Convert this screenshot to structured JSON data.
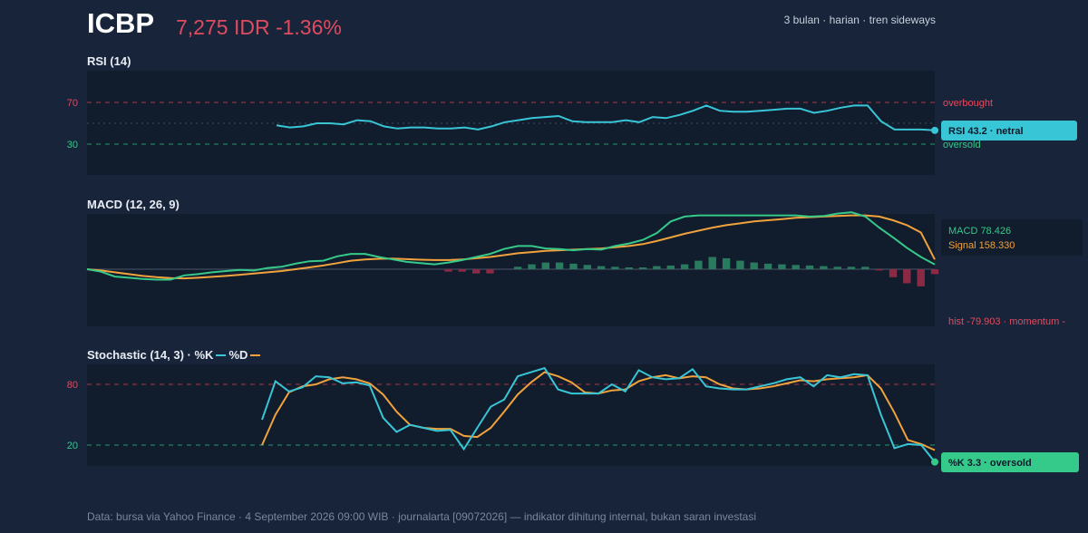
{
  "header": {
    "ticker": "ICBP",
    "price_change": "7,275 IDR -1.36%",
    "meta": "3 bulan · harian · tren sideways"
  },
  "colors": {
    "background": "#18243a",
    "panel": "#111c2d",
    "rsi_line": "#38c6d6",
    "macd_line": "#35c98a",
    "signal_line": "#f0a23c",
    "hist_positive": "#2a7a60",
    "hist_negative": "#8a2a44",
    "overbought": "#e04b60",
    "oversold": "#35c98a",
    "k_line": "#38c6d6",
    "d_line": "#f0a23c"
  },
  "rsi": {
    "title": "RSI (14)",
    "overbought_label": "overbought",
    "oversold_label": "oversold",
    "tick_70": "70",
    "tick_30": "30",
    "badge": "RSI 43.2 · netral"
  },
  "macd": {
    "title": "MACD (12, 26, 9)",
    "macd_label": "MACD 78.426",
    "signal_label": "Signal 158.330",
    "hist_label": "hist -79.903 · momentum -"
  },
  "stoch": {
    "title_prefix": "Stochastic (14, 3) · %K",
    "title_d": "%D",
    "tick_80": "80",
    "tick_20": "20",
    "badge": "%K 3.3 · oversold"
  },
  "footer": "Data: bursa via Yahoo Finance · 4 September 2026 09:00 WIB · journalarta [09072026] — indikator dihitung internal, bukan saran investasi",
  "chart_data": [
    {
      "type": "line",
      "title": "RSI (14)",
      "reference_lines": [
        70,
        30
      ],
      "reference_labels": [
        "overbought",
        "oversold"
      ],
      "series": [
        {
          "values": [
            48,
            46,
            47,
            50,
            50,
            49,
            53,
            52,
            47,
            45,
            46,
            46,
            45,
            45,
            46,
            44,
            47,
            51,
            53,
            55,
            56,
            57,
            52,
            51,
            51,
            51,
            53,
            51,
            56,
            55,
            58,
            62,
            67,
            62,
            61,
            61,
            62,
            63,
            64,
            64,
            60,
            62,
            65,
            67,
            67,
            52,
            44,
            44,
            44,
            43.2
          ]
        }
      ]
    },
    {
      "type": "line",
      "title": "MACD (12, 26, 9)",
      "series": [
        {
          "name": "MACD",
          "values": [
            0,
            -40,
            -120,
            -140,
            -160,
            -170,
            -170,
            -100,
            -80,
            -50,
            -30,
            -10,
            -20,
            20,
            40,
            90,
            130,
            140,
            210,
            250,
            250,
            200,
            160,
            120,
            100,
            80,
            110,
            150,
            200,
            250,
            330,
            380,
            380,
            340,
            330,
            310,
            330,
            320,
            380,
            420,
            480,
            590,
            780,
            860,
            880,
            880,
            880,
            880,
            880,
            880,
            880,
            880,
            860,
            870,
            910,
            930,
            860,
            680,
            520,
            350,
            200,
            78.426
          ]
        },
        {
          "name": "Signal",
          "values": [
            0,
            -20,
            -50,
            -80,
            -110,
            -130,
            -145,
            -150,
            -140,
            -125,
            -110,
            -90,
            -70,
            -50,
            -30,
            0,
            30,
            60,
            100,
            140,
            160,
            170,
            175,
            165,
            155,
            150,
            150,
            160,
            180,
            200,
            230,
            260,
            280,
            300,
            310,
            320,
            330,
            340,
            360,
            380,
            410,
            460,
            520,
            580,
            630,
            680,
            720,
            750,
            780,
            800,
            820,
            840,
            850,
            860,
            870,
            880,
            880,
            860,
            800,
            720,
            600,
            158.33
          ]
        },
        {
          "name": "hist",
          "values": [
            0,
            0,
            0,
            0,
            0,
            0,
            0,
            0,
            0,
            0,
            0,
            0,
            0,
            0,
            0,
            0,
            0,
            0,
            0,
            0,
            0,
            0,
            0,
            0,
            0,
            0,
            -40,
            -40,
            -70,
            -70,
            0,
            40,
            80,
            110,
            110,
            90,
            70,
            50,
            40,
            30,
            30,
            50,
            60,
            80,
            140,
            200,
            180,
            140,
            110,
            90,
            80,
            70,
            60,
            50,
            40,
            40,
            40,
            -20,
            -130,
            -230,
            -280,
            -79.903
          ]
        }
      ]
    },
    {
      "type": "line",
      "title": "Stochastic (14, 3)",
      "reference_lines": [
        80,
        20
      ],
      "series": [
        {
          "name": "%K",
          "values": [
            45,
            83,
            73,
            77,
            88,
            87,
            81,
            82,
            79,
            47,
            33,
            40,
            37,
            34,
            35,
            16,
            37,
            58,
            65,
            88,
            92,
            96,
            75,
            71,
            71,
            71,
            80,
            73,
            94,
            87,
            85,
            86,
            95,
            78,
            76,
            75,
            75,
            78,
            81,
            85,
            87,
            78,
            89,
            87,
            90,
            89,
            50,
            17,
            21,
            20,
            3.3
          ]
        },
        {
          "name": "%D",
          "values": [
            20,
            50,
            72,
            78,
            80,
            85,
            87,
            85,
            81,
            70,
            53,
            40,
            37,
            36,
            36,
            29,
            28,
            37,
            53,
            70,
            82,
            92,
            88,
            82,
            72,
            71,
            74,
            75,
            83,
            87,
            89,
            86,
            88,
            87,
            80,
            76,
            75,
            76,
            78,
            81,
            84,
            83,
            85,
            86,
            87,
            89,
            76,
            52,
            25,
            21,
            15
          ]
        }
      ]
    }
  ]
}
